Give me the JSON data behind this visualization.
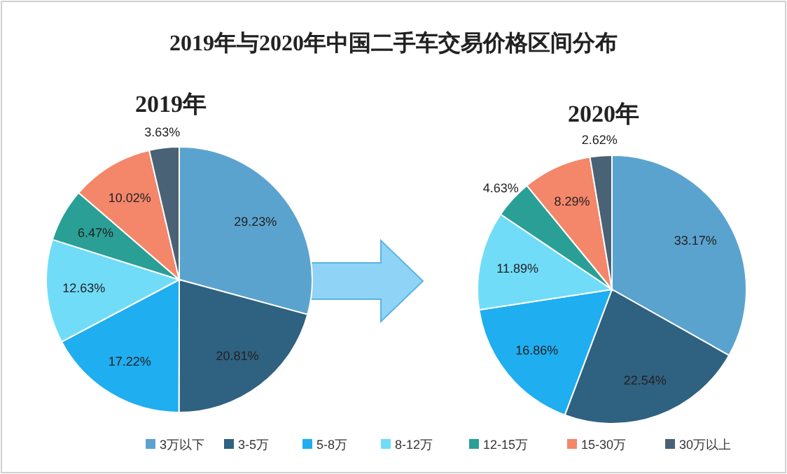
{
  "chart_data": [
    {
      "type": "pie",
      "title": "2019年",
      "annotations": [
        "2019年与2020年中国二手车交易价格区间分布"
      ],
      "legend": "bottom",
      "categories": [
        "3万以下",
        "3-5万",
        "5-8万",
        "8-12万",
        "12-15万",
        "15-30万",
        "30万以上"
      ],
      "values": [
        29.23,
        20.81,
        17.22,
        12.63,
        6.47,
        10.02,
        3.63
      ],
      "colors": [
        "#5ba3cf",
        "#2f6180",
        "#1faef0",
        "#70dcf8",
        "#2a9f96",
        "#f4866a",
        "#4a6275"
      ],
      "value_labels": [
        "29.23%",
        "20.81%",
        "17.22%",
        "12.63%",
        "6.47%",
        "10.02%",
        "3.63%"
      ]
    },
    {
      "type": "pie",
      "title": "2020年",
      "categories": [
        null,
        null,
        null,
        null,
        null,
        null,
        null
      ],
      "values": [
        33.17,
        22.54,
        16.86,
        11.89,
        4.63,
        8.29,
        2.62
      ],
      "colors": [
        "#5ba3cf",
        "#2f6180",
        "#1faef0",
        "#70dcf8",
        "#2a9f96",
        "#f4866a",
        "#4a6275"
      ],
      "value_labels": [
        "33.17%",
        "22.54%",
        "16.86%",
        "11.89%",
        "4.63%",
        "8.29%",
        "2.62%"
      ]
    }
  ]
}
